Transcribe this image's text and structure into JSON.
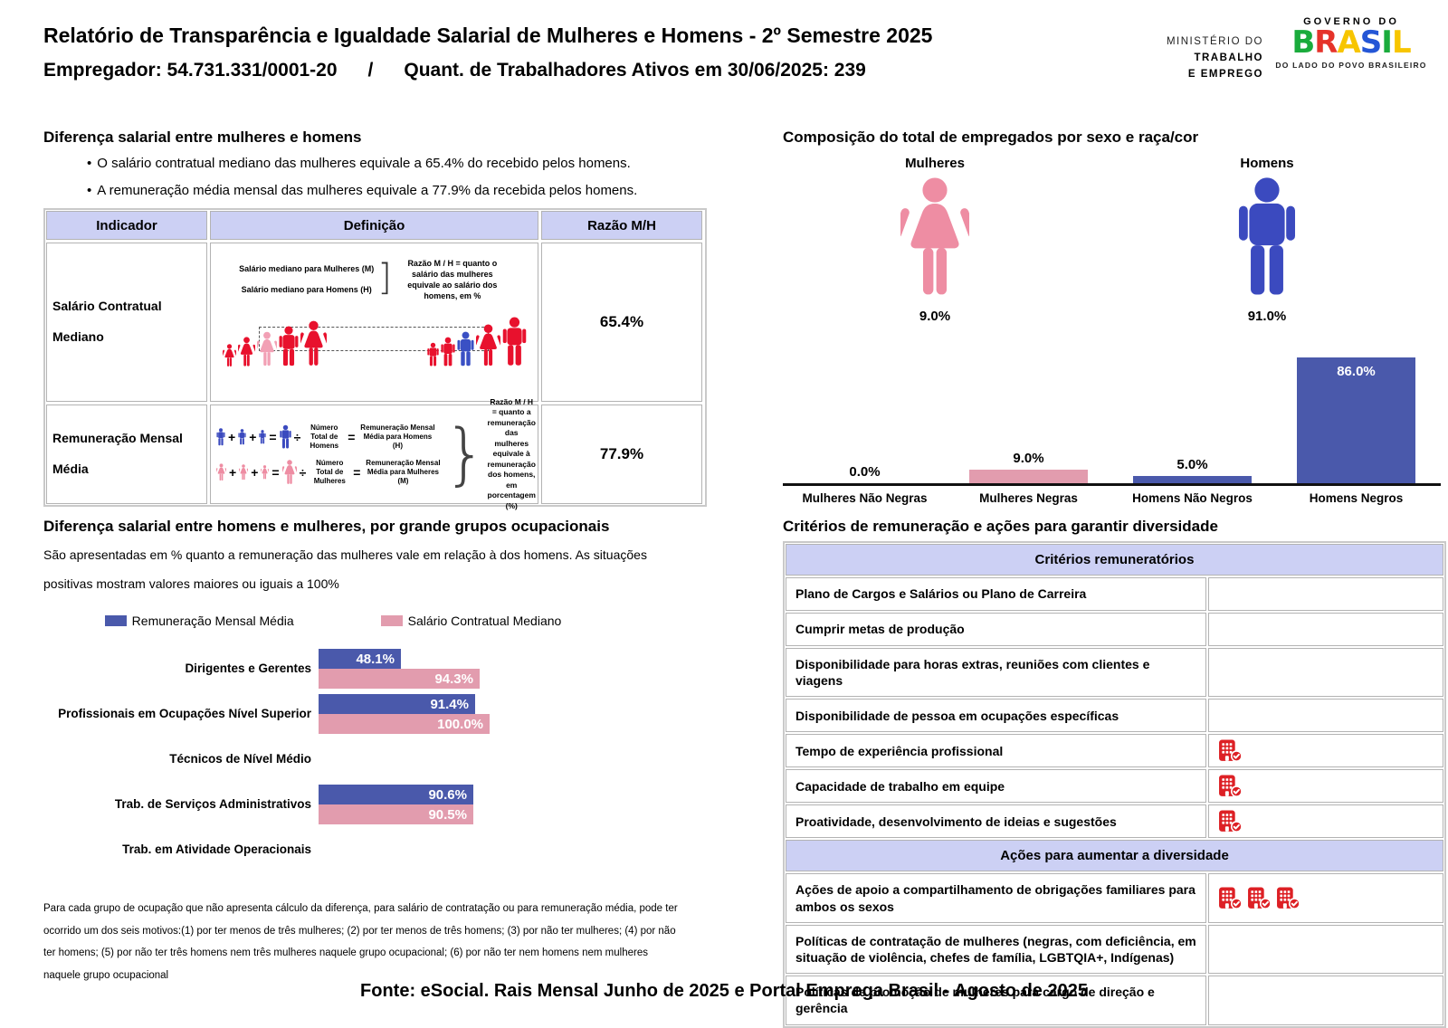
{
  "header": {
    "title": "Relatório de Transparência e Igualdade Salarial de Mulheres e Homens - 2º Semestre 2025",
    "employer": {
      "text": "Empregador: 54.731.331/0001-20",
      "separator": "/",
      "workers": "Quant. de Trabalhadores Ativos em 30/06/2025: 239"
    },
    "ministry_lines": [
      "MINISTÉRIO DO",
      "TRABALHO",
      "E EMPREGO"
    ],
    "gov_logo": {
      "top": "GOVERNO DO",
      "name": "BRASIL",
      "letters": [
        {
          "ch": "B",
          "color": "#1aab3c"
        },
        {
          "ch": "R",
          "color": "#e5332a"
        },
        {
          "ch": "A",
          "color": "#f7c500"
        },
        {
          "ch": "S",
          "color": "#2456d6"
        },
        {
          "ch": "I",
          "color": "#1aab3c"
        },
        {
          "ch": "L",
          "color": "#f7c500"
        }
      ],
      "tagline": "DO LADO DO POVO BRASILEIRO"
    }
  },
  "salary_gap": {
    "title": "Diferença salarial entre mulheres e homens",
    "bullets": [
      "O salário contratual mediano das mulheres equivale a 65.4% do recebido pelos homens.",
      "A remuneração média mensal das mulheres equivale a 77.9% da recebida pelos homens."
    ],
    "table": {
      "headers": [
        "Indicador",
        "Definição",
        "Razão M/H"
      ],
      "rows": [
        {
          "indicator": "Salário Contratual Mediano",
          "ratio": "65.4%",
          "diagram": {
            "line_women": "Salário mediano para Mulheres (M)",
            "line_men": "Salário mediano para Homens (H)",
            "bracket": "]",
            "ratio_note": "Razão M / H = quanto o salário das mulheres equivale ao salário dos homens, em %"
          }
        },
        {
          "indicator": "Remuneração Mensal Média",
          "ratio": "77.9%",
          "formula": {
            "men_total": "Número Total de Homens",
            "men_result": "Remuneração Mensal Média para Homens (H)",
            "women_total": "Número Total de Mulheres",
            "women_result": "Remuneração Mensal Média para Mulheres (M)",
            "brace": "}",
            "ratio_note": "Razão M / H = quanto a remuneração das mulheres equivale à remuneração dos homens, em porcentagem (%)"
          }
        }
      ]
    }
  },
  "composition": {
    "title": "Composição do total de empregados por sexo e raça/cor",
    "genders": [
      {
        "label": "Mulheres",
        "value": "9.0%"
      },
      {
        "label": "Homens",
        "value": "91.0%"
      }
    ]
  },
  "occupational": {
    "title": "Diferença salarial entre homens e mulheres, por grande grupos ocupacionais",
    "description": "São apresentadas em % quanto a remuneração das mulheres vale em relação à dos homens. As situações positivas mostram valores maiores ou iguais a 100%",
    "footnote": "Para cada grupo de ocupação que não apresenta cálculo da diferença, para salário de contratação ou para remuneração média, pode ter ocorrido um dos seis motivos:(1) por ter menos de três mulheres; (2) por ter menos de três homens; (3) por não ter mulheres; (4) por não ter homens; (5) por não ter três homens nem três mulheres naquele grupo ocupacional; (6) por não ter nem homens nem mulheres naquele grupo ocupacional"
  },
  "criteria": {
    "title": "Critérios de remuneração e ações para garantir diversidade",
    "sections": [
      {
        "header": "Critérios remuneratórios",
        "rows": [
          {
            "label": "Plano de Cargos e Salários ou Plano de Carreira",
            "checks": 0
          },
          {
            "label": "Cumprir metas de produção",
            "checks": 0
          },
          {
            "label": "Disponibilidade para horas extras, reuniões com clientes e viagens",
            "checks": 0
          },
          {
            "label": "Disponibilidade de pessoa em ocupações específicas",
            "checks": 0
          },
          {
            "label": "Tempo de experiência profissional",
            "checks": 1
          },
          {
            "label": "Capacidade de trabalho em equipe",
            "checks": 1
          },
          {
            "label": "Proatividade, desenvolvimento de ideias e sugestões",
            "checks": 1
          }
        ]
      },
      {
        "header": "Ações para aumentar a diversidade",
        "rows": [
          {
            "label": "Ações de apoio a compartilhamento de obrigações familiares para ambos os sexos",
            "checks": 3
          },
          {
            "label": "Políticas de contratação de mulheres (negras, com deficiência, em situação de violência, chefes de família, LGBTQIA+, Indígenas)",
            "checks": 0
          },
          {
            "label": "Políticas de promoção de mulheres para cargo de direção e gerência",
            "checks": 0
          }
        ]
      }
    ]
  },
  "footer": {
    "source": "Fonte: eSocial. Rais Mensal Junho de 2025 e Portal Emprega Brasil - Agosto de 2025"
  },
  "chart_data": [
    {
      "id": "composition",
      "type": "bar",
      "title": "Composição do total de empregados por sexo e raça/cor",
      "categories": [
        "Mulheres Não Negras",
        "Mulheres Negras",
        "Homens Não Negros",
        "Homens Negros"
      ],
      "values": [
        0.0,
        9.0,
        5.0,
        86.0
      ],
      "labels": [
        "0.0%",
        "9.0%",
        "5.0%",
        "86.0%"
      ],
      "bar_colors": [
        "pink",
        "pink",
        "blue",
        "blue"
      ],
      "ylim": [
        0,
        100
      ],
      "grid": false,
      "value_label_position": "above (inside bar when large)"
    },
    {
      "id": "occupational",
      "type": "bar-horizontal",
      "title": "Diferença salarial entre homens e mulheres, por grande grupos ocupacionais",
      "categories": [
        "Dirigentes e Gerentes",
        "Profissionais em Ocupações Nível Superior",
        "Técnicos de Nível Médio",
        "Trab. de Serviços Administrativos",
        "Trab. em Atividade Operacionais"
      ],
      "series": [
        {
          "name": "Remuneração Mensal Média",
          "color": "blue",
          "values": [
            48.1,
            91.4,
            null,
            90.6,
            null
          ],
          "labels": [
            "48.1%",
            "91.4%",
            null,
            "90.6%",
            null
          ]
        },
        {
          "name": "Salário Contratual Mediano",
          "color": "pink",
          "values": [
            94.3,
            100.0,
            null,
            90.5,
            null
          ],
          "labels": [
            "94.3%",
            "100.0%",
            null,
            "90.5%",
            null
          ]
        }
      ],
      "xlim": [
        0,
        105
      ],
      "legend_position": "top",
      "value_label_position": "inside-right"
    }
  ],
  "colors": {
    "header_lavender": "#ccd0f4",
    "bar_blue": "#4a59ab",
    "bar_pink": "#e29cae",
    "male_blue": "#3b4abf",
    "female_pink": "#ee8da3",
    "figure_red": "#e8112d",
    "highlight_pink": "#f2a0b5",
    "highlight_blue": "#3a50c4",
    "icon_red": "#dd2025",
    "baseline_black": "#111111"
  }
}
